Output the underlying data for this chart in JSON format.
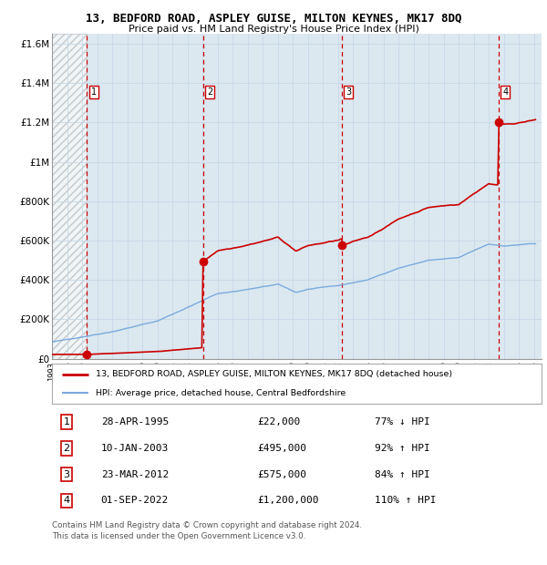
{
  "title": "13, BEDFORD ROAD, ASPLEY GUISE, MILTON KEYNES, MK17 8DQ",
  "subtitle": "Price paid vs. HM Land Registry's House Price Index (HPI)",
  "ylim": [
    0,
    1650000
  ],
  "yticks": [
    0,
    200000,
    400000,
    600000,
    800000,
    1000000,
    1200000,
    1400000,
    1600000
  ],
  "ytick_labels": [
    "£0",
    "£200K",
    "£400K",
    "£600K",
    "£800K",
    "£1M",
    "£1.2M",
    "£1.4M",
    "£1.6M"
  ],
  "sales": [
    {
      "date_num": 1995.33,
      "price": 22000,
      "label": "1"
    },
    {
      "date_num": 2003.03,
      "price": 495000,
      "label": "2"
    },
    {
      "date_num": 2012.23,
      "price": 575000,
      "label": "3"
    },
    {
      "date_num": 2022.67,
      "price": 1200000,
      "label": "4"
    }
  ],
  "sale_color": "#cc0000",
  "hpi_color": "#7aaadd",
  "vline_color": "#cc0000",
  "grid_color": "#c8d8e8",
  "plot_bg": "#dce8f0",
  "legend_entries": [
    "13, BEDFORD ROAD, ASPLEY GUISE, MILTON KEYNES, MK17 8DQ (detached house)",
    "HPI: Average price, detached house, Central Bedfordshire"
  ],
  "table_rows": [
    {
      "num": "1",
      "date": "28-APR-1995",
      "price": "£22,000",
      "pct": "77% ↓ HPI"
    },
    {
      "num": "2",
      "date": "10-JAN-2003",
      "price": "£495,000",
      "pct": "92% ↑ HPI"
    },
    {
      "num": "3",
      "date": "23-MAR-2012",
      "price": "£575,000",
      "pct": "84% ↑ HPI"
    },
    {
      "num": "4",
      "date": "01-SEP-2022",
      "price": "£1,200,000",
      "pct": "110% ↑ HPI"
    }
  ],
  "footnote": "Contains HM Land Registry data © Crown copyright and database right 2024.\nThis data is licensed under the Open Government Licence v3.0.",
  "xlim_start": 1993.0,
  "xlim_end": 2025.5
}
